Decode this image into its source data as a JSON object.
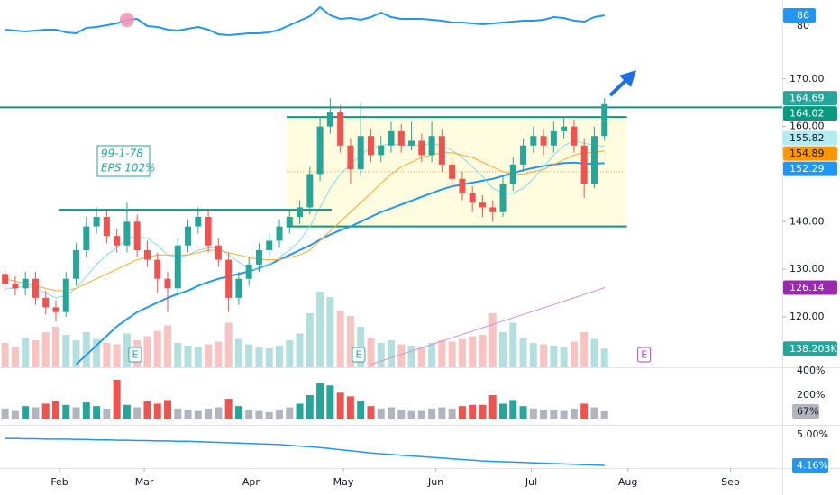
{
  "chart_data": {
    "type": "candlestick",
    "xlim": [
      -0.5,
      76.5
    ],
    "xticks": [
      {
        "value": 5.36,
        "label": "Feb"
      },
      {
        "value": 13.7,
        "label": "Mar"
      },
      {
        "value": 24.2,
        "label": "Apr"
      },
      {
        "value": 33.3,
        "label": "May"
      },
      {
        "value": 42.4,
        "label": "Jun"
      },
      {
        "value": 51.8,
        "label": "Jul"
      },
      {
        "value": 61.3,
        "label": "Aug"
      },
      {
        "value": 71.4,
        "label": "Sep"
      }
    ],
    "ylim": [
      109.4,
      178.1
    ],
    "yticks": [
      {
        "value": 170,
        "label": "170.00"
      },
      {
        "value": 160,
        "label": "160.00"
      },
      {
        "value": 140,
        "label": "140.00"
      },
      {
        "value": 130,
        "label": "130.00"
      },
      {
        "value": 120,
        "label": "120.00"
      }
    ],
    "up_color": "#26a69a",
    "down_color": "#ef5350",
    "ohlc": [
      [
        129,
        130,
        125.5,
        127
      ],
      [
        127,
        128.5,
        124.5,
        126
      ],
      [
        126,
        129.5,
        124.5,
        128
      ],
      [
        128,
        129.5,
        122.5,
        124
      ],
      [
        124,
        125.5,
        120.5,
        122
      ],
      [
        122,
        123.5,
        119,
        121
      ],
      [
        121,
        129.5,
        120,
        128
      ],
      [
        128,
        135.5,
        126.5,
        134
      ],
      [
        134,
        141,
        132.5,
        139
      ],
      [
        139,
        143,
        137.5,
        141
      ],
      [
        141,
        142.5,
        135.5,
        137
      ],
      [
        137,
        138.5,
        133.5,
        135
      ],
      [
        135,
        144,
        133.5,
        140
      ],
      [
        140,
        141.5,
        132.5,
        134
      ],
      [
        134,
        136,
        130.5,
        132
      ],
      [
        132,
        133.5,
        125,
        128
      ],
      [
        128,
        129.5,
        121,
        126
      ],
      [
        126,
        136.5,
        124.5,
        135
      ],
      [
        135,
        140.5,
        133.5,
        139
      ],
      [
        139,
        143,
        137.5,
        141
      ],
      [
        141,
        142.5,
        133.5,
        135
      ],
      [
        135,
        136.5,
        130.5,
        132
      ],
      [
        132,
        133.5,
        121,
        124
      ],
      [
        124,
        129.5,
        122.5,
        128
      ],
      [
        128,
        132.5,
        126.5,
        131
      ],
      [
        131,
        135.5,
        129.5,
        134
      ],
      [
        134,
        137.5,
        132.5,
        136
      ],
      [
        136,
        140.5,
        134.5,
        139
      ],
      [
        139,
        142.5,
        137.5,
        141
      ],
      [
        141,
        144.5,
        139.5,
        143
      ],
      [
        143,
        151.5,
        141.5,
        150
      ],
      [
        150,
        162,
        148.5,
        160
      ],
      [
        160,
        166,
        158.5,
        163
      ],
      [
        163,
        164.5,
        154.5,
        156
      ],
      [
        156,
        157.5,
        148,
        151
      ],
      [
        151,
        165,
        149.5,
        158
      ],
      [
        158,
        159.5,
        152.5,
        154
      ],
      [
        154,
        158,
        152.5,
        156
      ],
      [
        156,
        161,
        154.5,
        159
      ],
      [
        159,
        160.5,
        154.5,
        156
      ],
      [
        156,
        161,
        155,
        157
      ],
      [
        157,
        158.5,
        152.5,
        154
      ],
      [
        154,
        161,
        152.5,
        158
      ],
      [
        158,
        159.5,
        150.5,
        152
      ],
      [
        152,
        153.5,
        147.5,
        149
      ],
      [
        149,
        150.5,
        144.5,
        146
      ],
      [
        146,
        147.5,
        142,
        144
      ],
      [
        144,
        145.5,
        141,
        143
      ],
      [
        143,
        144.5,
        140,
        142
      ],
      [
        142,
        149.5,
        141,
        148
      ],
      [
        148,
        153.5,
        146.5,
        152
      ],
      [
        152,
        157.5,
        150.5,
        156
      ],
      [
        156,
        160,
        154.5,
        158
      ],
      [
        158,
        159.5,
        154,
        156
      ],
      [
        156,
        161,
        154.5,
        159
      ],
      [
        159,
        162,
        157.5,
        160
      ],
      [
        160,
        161.5,
        154.5,
        156
      ],
      [
        156,
        157.5,
        145,
        148
      ],
      [
        148,
        160,
        147,
        158
      ],
      [
        158,
        166,
        157,
        164.69
      ]
    ],
    "volume": [
      180000,
      150000,
      220000,
      200000,
      260000,
      300000,
      240000,
      200000,
      260000,
      210000,
      180000,
      170000,
      250000,
      200000,
      230000,
      270000,
      310000,
      180000,
      160000,
      150000,
      170000,
      190000,
      330000,
      210000,
      170000,
      150000,
      140000,
      160000,
      200000,
      250000,
      400000,
      560000,
      520000,
      420000,
      380000,
      300000,
      220000,
      180000,
      200000,
      170000,
      160000,
      150000,
      180000,
      200000,
      190000,
      210000,
      230000,
      240000,
      400000,
      260000,
      330000,
      220000,
      180000,
      170000,
      160000,
      150000,
      190000,
      260000,
      210000,
      138203
    ],
    "vlim": [
      0,
      600000
    ],
    "volume_badge": {
      "value": 138203,
      "label": "138.203K",
      "color": "#26a69a"
    },
    "series": [
      {
        "color": "#2196f3",
        "width": 2,
        "values": [
          null,
          null,
          null,
          null,
          null,
          null,
          null,
          110,
          112,
          114,
          116,
          118,
          119.5,
          121,
          122,
          123,
          124,
          124.8,
          125.5,
          126.5,
          127.3,
          128,
          128.5,
          129,
          129.6,
          130.2,
          131,
          132,
          133,
          134,
          135,
          136.2,
          137.3,
          138.2,
          139,
          140,
          141,
          142,
          142.8,
          143.6,
          144.4,
          145.2,
          146,
          146.8,
          147.4,
          147.8,
          148.2,
          148.6,
          149,
          149.6,
          150.2,
          150.8,
          151.3,
          151.7,
          152,
          152.3,
          152.4,
          152.2,
          152.2,
          152.29
        ]
      },
      {
        "color": "#80deea",
        "width": 1,
        "values": [
          126,
          126,
          126.5,
          126,
          125,
          124,
          124.5,
          126,
          128.5,
          131,
          133,
          134.5,
          136.5,
          137,
          136.5,
          135,
          133,
          132.5,
          133,
          134,
          134.5,
          134.5,
          133,
          131.5,
          130,
          130,
          131,
          132.5,
          134,
          136,
          139,
          143,
          147,
          150,
          152,
          154,
          155.5,
          156,
          156.5,
          156,
          156,
          156,
          156.5,
          156,
          155,
          153.5,
          151.5,
          149.5,
          147,
          146,
          146,
          147,
          149,
          151.5,
          154,
          156,
          157,
          156.5,
          156,
          155.82
        ]
      },
      {
        "color": "#ffa726",
        "width": 1,
        "values": [
          128,
          127.5,
          127,
          126.5,
          126,
          125.5,
          125.5,
          126,
          127,
          128,
          129,
          130,
          131,
          132,
          132.5,
          133,
          133,
          133,
          133,
          133.5,
          134,
          134,
          133.5,
          133,
          132.5,
          132,
          132,
          132,
          132.5,
          133,
          134,
          136,
          138,
          140,
          142,
          144,
          146,
          148,
          150,
          151.5,
          152.5,
          153.5,
          154,
          154.5,
          154.5,
          154,
          153.5,
          152.5,
          151.5,
          150.5,
          150,
          150,
          150.5,
          151,
          152,
          153,
          154,
          154.5,
          154.5,
          154.89
        ]
      },
      {
        "color": "#ce93d8",
        "width": 1,
        "values": [
          null,
          null,
          null,
          null,
          null,
          null,
          null,
          null,
          null,
          null,
          null,
          null,
          null,
          null,
          null,
          null,
          null,
          null,
          null,
          null,
          null,
          null,
          null,
          null,
          null,
          null,
          null,
          null,
          null,
          null,
          null,
          null,
          null,
          null,
          null,
          null,
          110,
          110.7,
          111.4,
          112.1,
          112.8,
          113.5,
          114.2,
          114.9,
          115.6,
          116.3,
          117,
          117.7,
          118.4,
          119.1,
          119.8,
          120.5,
          121.2,
          121.9,
          122.6,
          123.3,
          124,
          124.7,
          125.4,
          126.14
        ]
      }
    ],
    "badges": [
      {
        "value": 164.69,
        "color": "#26a69a"
      },
      {
        "value": 164.02,
        "color": "#089981"
      },
      {
        "value": 155.82,
        "color": "#b2ebf2",
        "text_color": "#131722"
      },
      {
        "value": 154.89,
        "color": "#ff9800",
        "text_color": "#131722"
      },
      {
        "value": 152.29,
        "color": "#2196f3"
      },
      {
        "value": 126.14,
        "color": "#9c27b0"
      }
    ],
    "levels": [
      {
        "price": 164.02,
        "color": "#089981"
      },
      {
        "price": 142.5,
        "from": 5.27,
        "to": 32.15,
        "color": "#089981"
      }
    ],
    "box": {
      "top": 162,
      "bottom": 139,
      "mid": 150.5,
      "from": 27.7,
      "to": 61.2,
      "color": "#089981",
      "fill": "#fff9c4"
    },
    "annotation": [
      "99-1-78",
      "EPS 102%"
    ],
    "annotation_color": "#26a69a",
    "earnings": [
      {
        "at": 12.8,
        "label": "E",
        "color": "#26a69a"
      },
      {
        "at": 34.8,
        "label": "E",
        "color": "#26a69a"
      },
      {
        "at": 62.9,
        "label": "E",
        "color": "#ab47bc"
      }
    ],
    "rs": {
      "values": [
        78,
        77.5,
        77,
        77.5,
        78,
        78,
        76.5,
        76,
        79,
        79.5,
        80.5,
        81.5,
        83.5,
        84,
        80,
        79.5,
        78,
        77.5,
        78.5,
        79.5,
        78,
        75.5,
        75,
        75.5,
        76,
        76,
        76.5,
        78,
        80.5,
        83,
        85.5,
        90.5,
        86,
        84,
        84.5,
        83.5,
        85,
        87.5,
        85,
        84,
        84,
        84,
        83.5,
        83,
        82,
        82,
        81.5,
        81,
        81.5,
        82,
        82.5,
        83,
        83,
        83.5,
        85,
        84.5,
        83,
        82.5,
        85,
        86
      ],
      "ylim": [
        72,
        94.5
      ],
      "yticks": [
        80
      ],
      "badge": 86,
      "color": "#2196f3",
      "highlight": 12,
      "highlight_color": "#f48fb1"
    },
    "volume_pct": {
      "values": [
        90,
        70,
        110,
        100,
        130,
        150,
        120,
        100,
        140,
        110,
        90,
        326,
        120,
        100,
        150,
        130,
        160,
        90,
        80,
        70,
        90,
        100,
        170,
        110,
        80,
        70,
        60,
        80,
        100,
        130,
        200,
        300,
        280,
        220,
        190,
        150,
        110,
        90,
        100,
        80,
        70,
        70,
        90,
        100,
        90,
        110,
        120,
        120,
        200,
        130,
        160,
        110,
        90,
        80,
        80,
        70,
        90,
        130,
        100,
        67
      ],
      "ylim": [
        -44.4,
        429.6
      ],
      "yticks": [
        {
          "value": 400,
          "label": "400%"
        },
        {
          "value": 200,
          "label": "200%"
        }
      ],
      "badge": {
        "value": 67,
        "label": "67%"
      },
      "color": "#b2b5be"
    },
    "rate": {
      "values": [
        4.9,
        4.9,
        4.89,
        4.89,
        4.88,
        4.88,
        4.88,
        4.87,
        4.87,
        4.86,
        4.86,
        4.85,
        4.85,
        4.84,
        4.84,
        4.83,
        4.83,
        4.82,
        4.82,
        4.81,
        4.8,
        4.79,
        4.78,
        4.77,
        4.76,
        4.75,
        4.74,
        4.73,
        4.71,
        4.69,
        4.67,
        4.65,
        4.62,
        4.59,
        4.56,
        4.53,
        4.5,
        4.48,
        4.46,
        4.44,
        4.42,
        4.4,
        4.38,
        4.36,
        4.34,
        4.32,
        4.3,
        4.28,
        4.27,
        4.26,
        4.25,
        4.24,
        4.23,
        4.22,
        4.21,
        4.2,
        4.19,
        4.18,
        4.17,
        4.16
      ],
      "ylim": [
        4.086,
        5.272
      ],
      "yticks": [
        {
          "value": 5,
          "label": "5.00%"
        }
      ],
      "badge": {
        "value": 4.16,
        "label": "4.16%"
      },
      "color": "#2196f3"
    }
  }
}
